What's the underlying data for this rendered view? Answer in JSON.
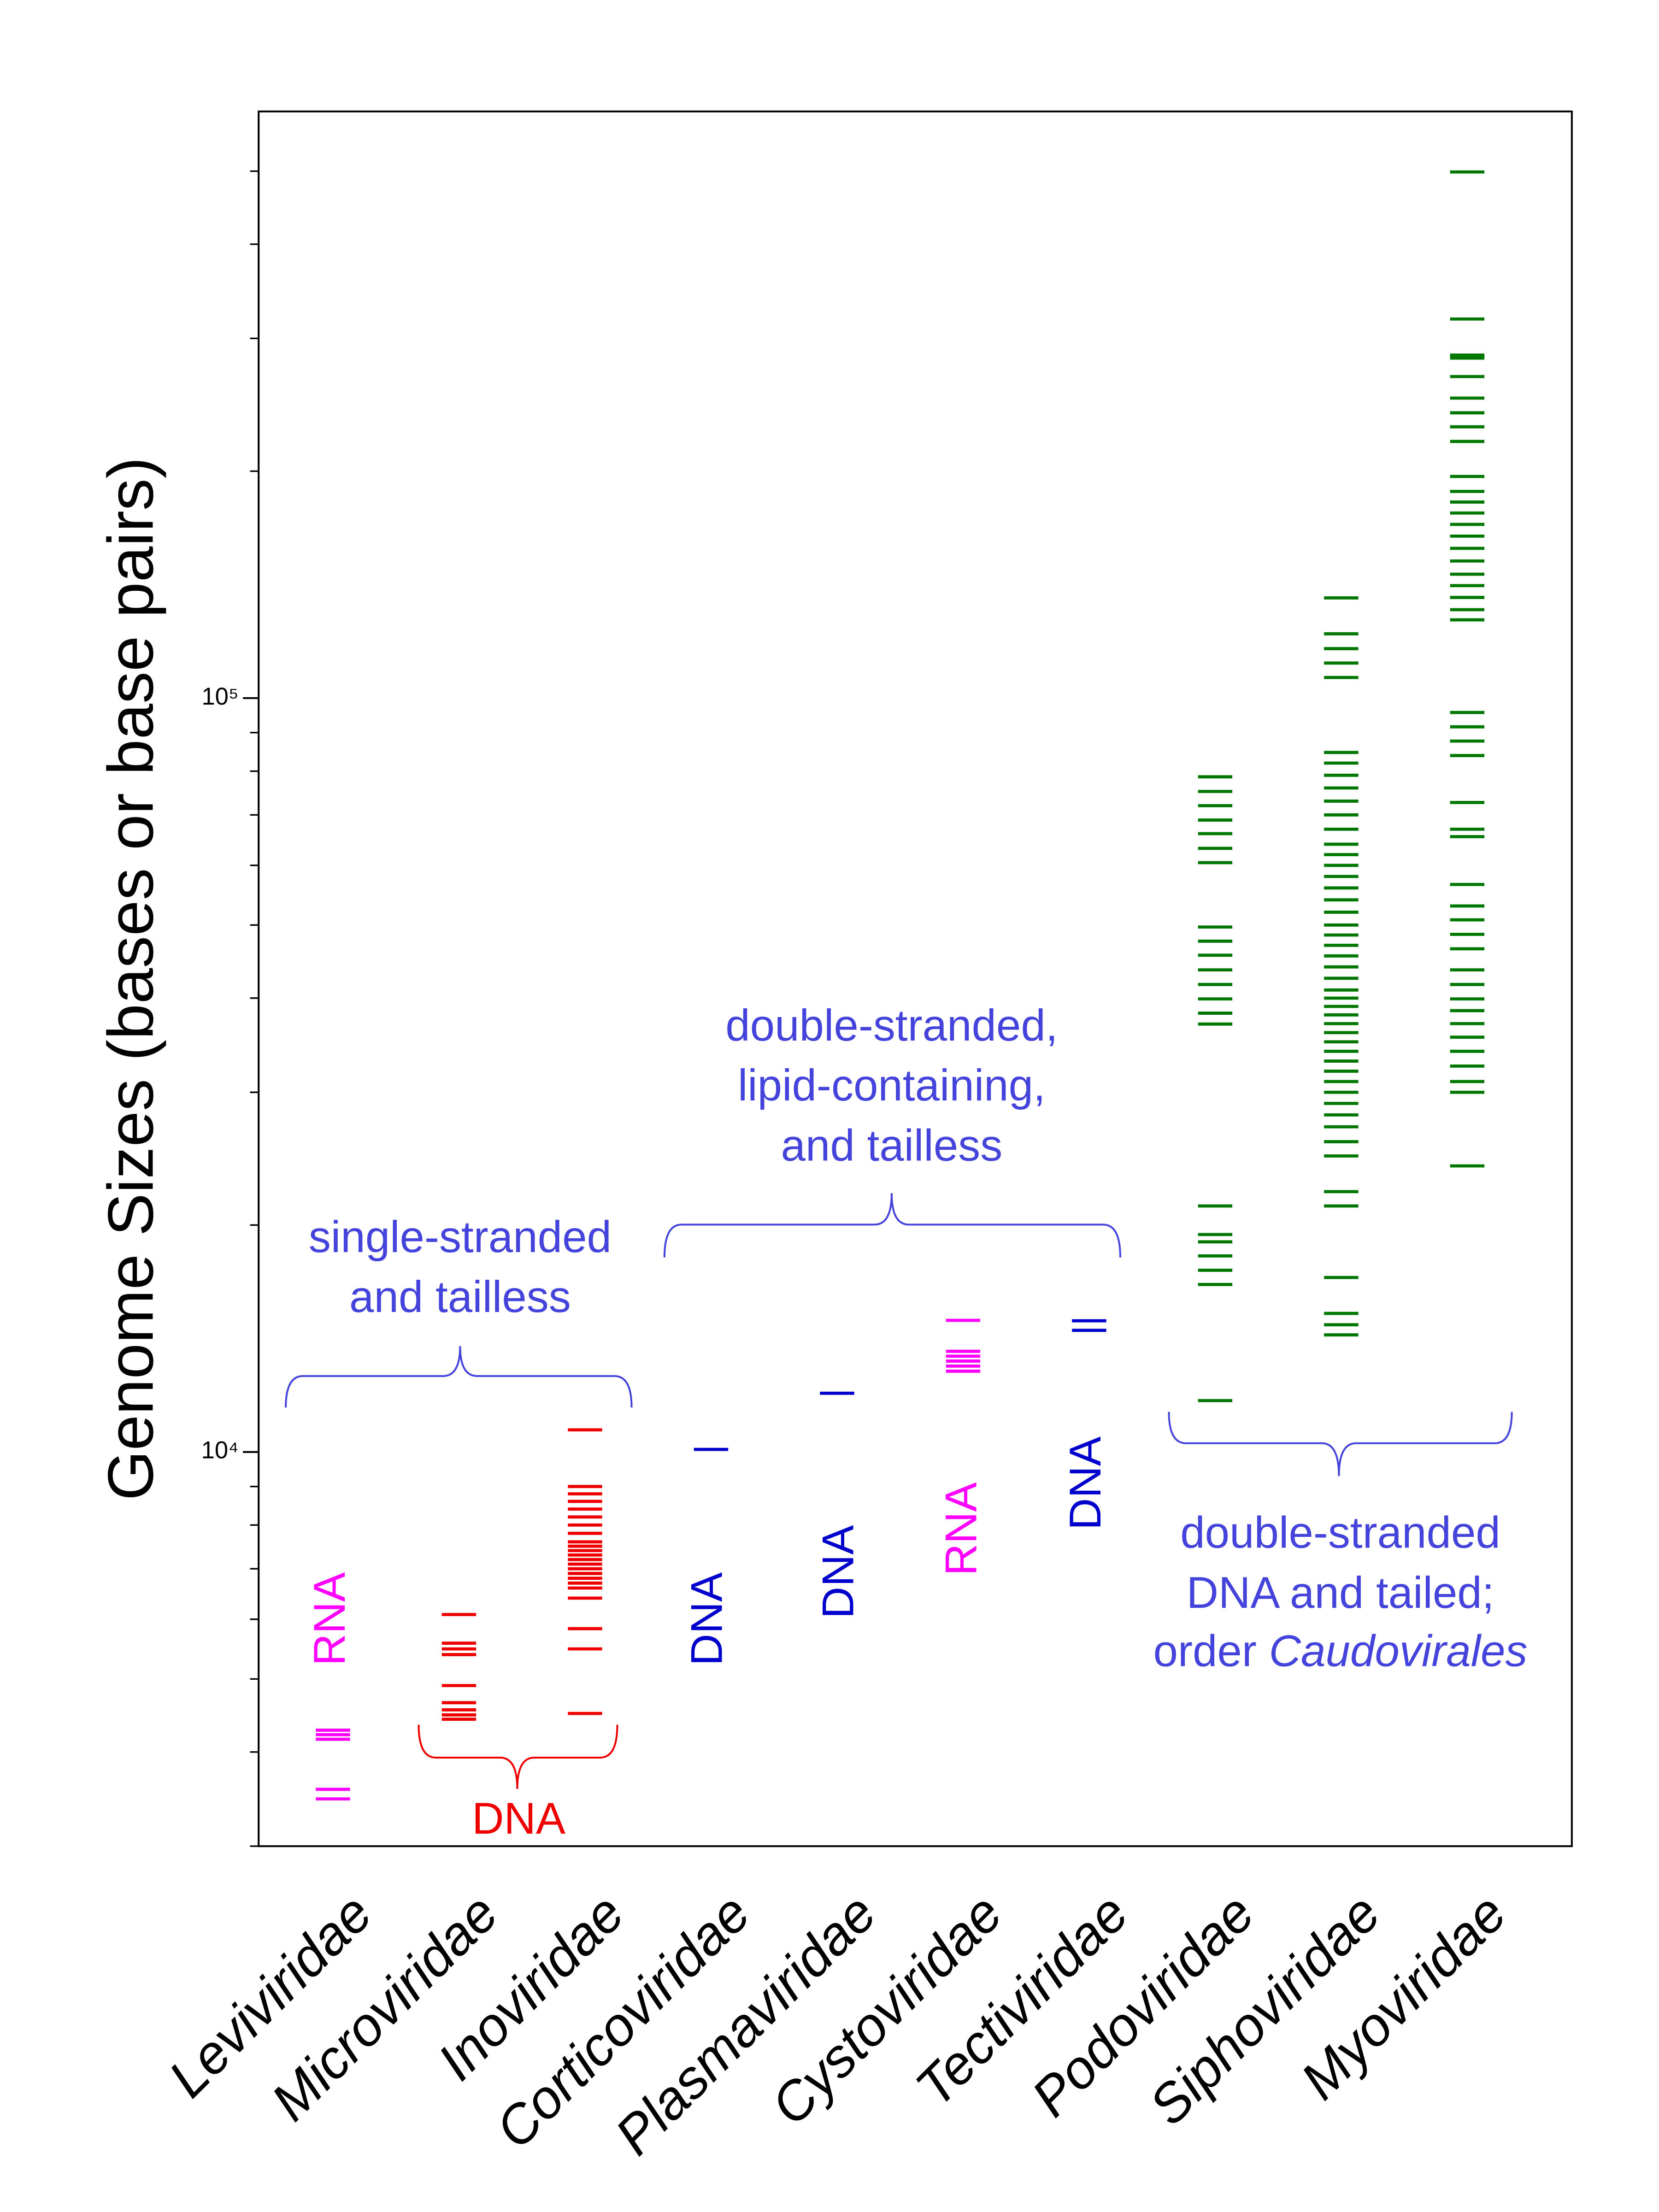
{
  "chart_data": {
    "type": "strip",
    "y_label": "Genome Sizes (bases or base pairs)",
    "log_y": true,
    "ylim": [
      3000,
      600000
    ],
    "yticks": [
      {
        "value": 10000,
        "label": "10⁴"
      },
      {
        "value": 100000,
        "label": "10⁵"
      }
    ],
    "yminor_ticks": [
      3000,
      4000,
      5000,
      6000,
      7000,
      8000,
      9000,
      20000,
      30000,
      40000,
      50000,
      60000,
      70000,
      80000,
      90000,
      200000,
      300000,
      400000,
      500000
    ],
    "categories": [
      "Leviviridae",
      "Microviridae",
      "Inoviridae",
      "Corticoviridae",
      "Plasmaviridae",
      "Cystoviridae",
      "Tectiviridae",
      "Podoviridae",
      "Siphoviridae",
      "Myoviridae"
    ],
    "groups": [
      {
        "color": "#ff00ff",
        "values": [
          3466,
          3569,
          4159,
          4217,
          4276
        ]
      },
      {
        "color": "#ee0000",
        "values": [
          4421,
          4480,
          4550,
          4650,
          4900,
          5386,
          5480,
          5577,
          6087
        ]
      },
      {
        "color": "#ee0000",
        "values": [
          4500,
          5480,
          5830,
          6400,
          6600,
          6700,
          6800,
          6900,
          7000,
          7100,
          7200,
          7300,
          7400,
          7500,
          7600,
          7800,
          8000,
          8200,
          8400,
          8600,
          8800,
          9000,
          10700
        ]
      },
      {
        "color": "#0000cc",
        "values": [
          10079
        ]
      },
      {
        "color": "#0000cc",
        "values": [
          11965
        ]
      },
      {
        "color": "#ff00ff",
        "values": [
          12800,
          13000,
          13200,
          13400,
          13600,
          14950
        ]
      },
      {
        "color": "#0000cc",
        "values": [
          14500,
          14930
        ]
      },
      {
        "color": "#007700",
        "values": [
          11700,
          16680,
          17420,
          18200,
          19000,
          19430,
          21200,
          36950,
          38200,
          39900,
          41700,
          43600,
          45600,
          47600,
          49700,
          60500,
          63200,
          66100,
          68900,
          72000,
          75200,
          78630
        ]
      },
      {
        "color": "#007700",
        "values": [
          14300,
          14750,
          15270,
          17040,
          21200,
          22150,
          24700,
          25800,
          27000,
          28000,
          29000,
          30000,
          31000,
          32000,
          33000,
          34000,
          35000,
          36000,
          37000,
          38000,
          39000,
          40000,
          41000,
          42500,
          44000,
          45500,
          47000,
          48500,
          50000,
          52000,
          54000,
          56000,
          58000,
          60000,
          62000,
          64000,
          67000,
          70000,
          73000,
          76000,
          79000,
          82000,
          84700,
          106500,
          111300,
          116300,
          121700,
          135800
        ]
      },
      {
        "color": "#007700",
        "values": [
          23960,
          30000,
          31000,
          32500,
          34000,
          35500,
          37000,
          38500,
          39900,
          41700,
          43600,
          46500,
          48600,
          50800,
          53000,
          56600,
          65500,
          67000,
          72700,
          83900,
          87700,
          91600,
          95700,
          127000,
          131000,
          136000,
          141000,
          146000,
          152000,
          158000,
          164000,
          170000,
          176000,
          182000,
          188000,
          196800,
          219000,
          229000,
          239000,
          250000,
          267000,
          282500,
          285100,
          318300,
          498800
        ]
      }
    ],
    "annotations": [
      {
        "text": "RNA",
        "color": "#ff00ff"
      },
      {
        "text": "DNA",
        "color": "#ee0000"
      },
      {
        "text": "single-stranded"
      },
      {
        "text": "and tailless"
      },
      {
        "text": "DNA",
        "color": "#0000cc"
      },
      {
        "text": "DNA",
        "color": "#0000cc"
      },
      {
        "text": "RNA",
        "color": "#ff00ff"
      },
      {
        "text": "DNA",
        "color": "#0000cc"
      },
      {
        "text": "double-stranded,"
      },
      {
        "text": "lipid-containing,"
      },
      {
        "text": "and tailless"
      },
      {
        "text": "double-stranded"
      },
      {
        "text": "DNA and tailed;"
      },
      {
        "text": "order "
      },
      {
        "text": "Caudovirales"
      }
    ]
  }
}
